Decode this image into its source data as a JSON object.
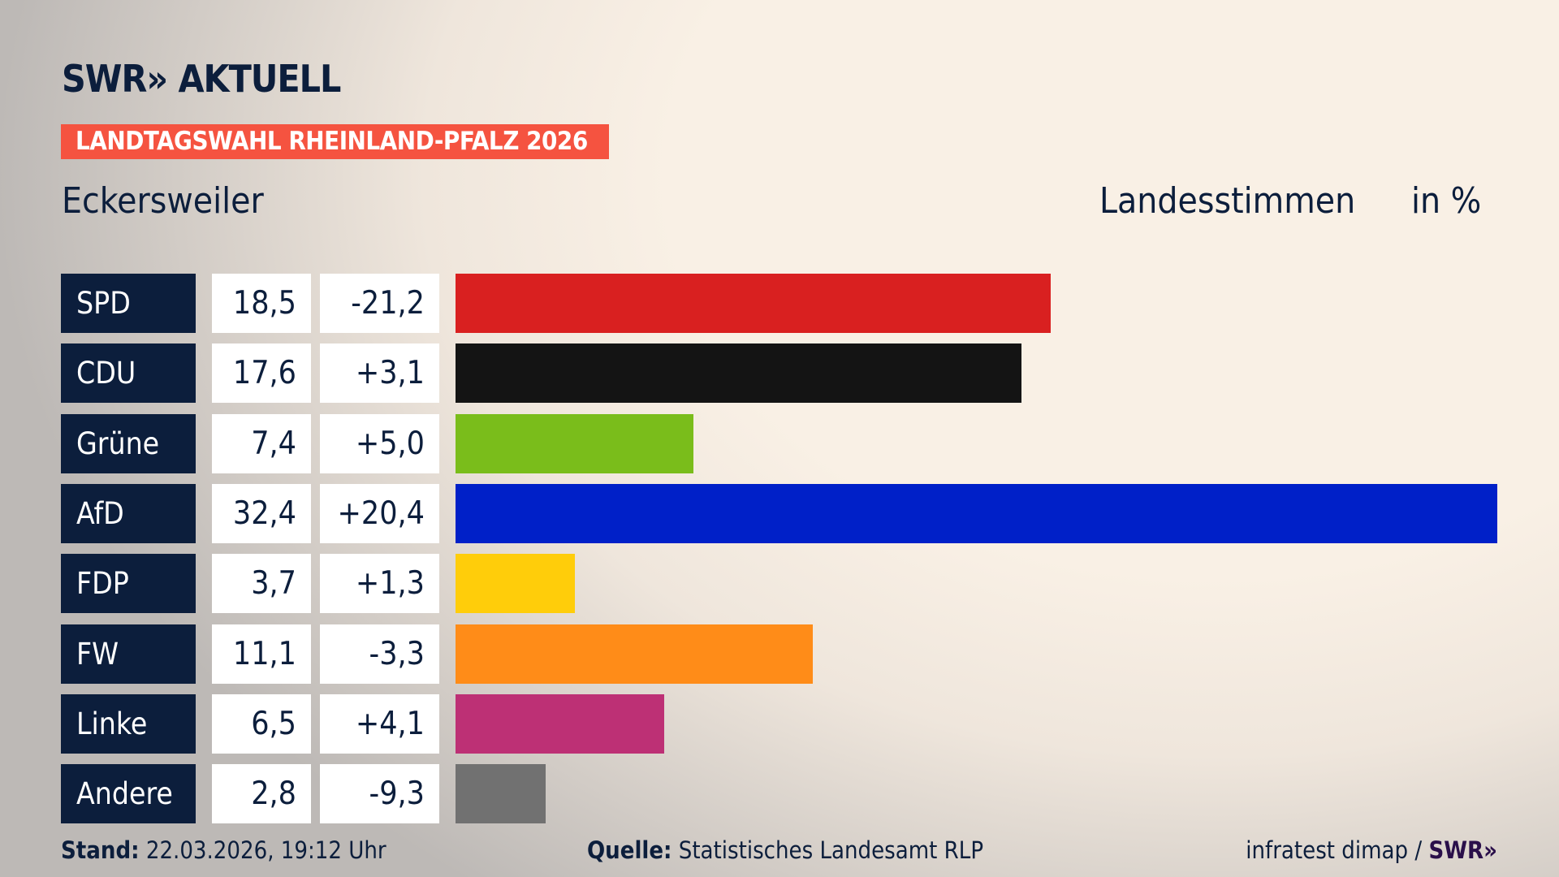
{
  "header": {
    "logo": "SWR» AKTUELL",
    "banner": "LANDTAGSWAHL RHEINLAND-PFALZ 2026",
    "place": "Eckersweiler",
    "metric": "Landesstimmen",
    "unit": "in %"
  },
  "chart_data": {
    "type": "bar",
    "orientation": "horizontal",
    "xlim": [
      0,
      32.4
    ],
    "categories": [
      "SPD",
      "CDU",
      "Grüne",
      "AfD",
      "FDP",
      "FW",
      "Linke",
      "Andere"
    ],
    "values": [
      18.5,
      17.6,
      7.4,
      32.4,
      3.7,
      11.1,
      6.5,
      2.8
    ],
    "value_labels": [
      "18,5",
      "17,6",
      "7,4",
      "32,4",
      "3,7",
      "11,1",
      "6,5",
      "2,8"
    ],
    "diff_labels": [
      "-21,2",
      "+3,1",
      "+5,0",
      "+20,4",
      "+1,3",
      "-3,3",
      "+4,1",
      "-9,3"
    ],
    "colors": [
      "#d92020",
      "#141414",
      "#7abd1b",
      "#0020c8",
      "#ffcd0a",
      "#ff8c18",
      "#bd3075",
      "#717171"
    ]
  },
  "footer": {
    "stand_label": "Stand:",
    "stand_value": "22.03.2026, 19:12 Uhr",
    "source_label": "Quelle:",
    "source_value": "Statistisches Landesamt RLP",
    "credit": "infratest dimap /",
    "credit_logo": "SWR»"
  }
}
